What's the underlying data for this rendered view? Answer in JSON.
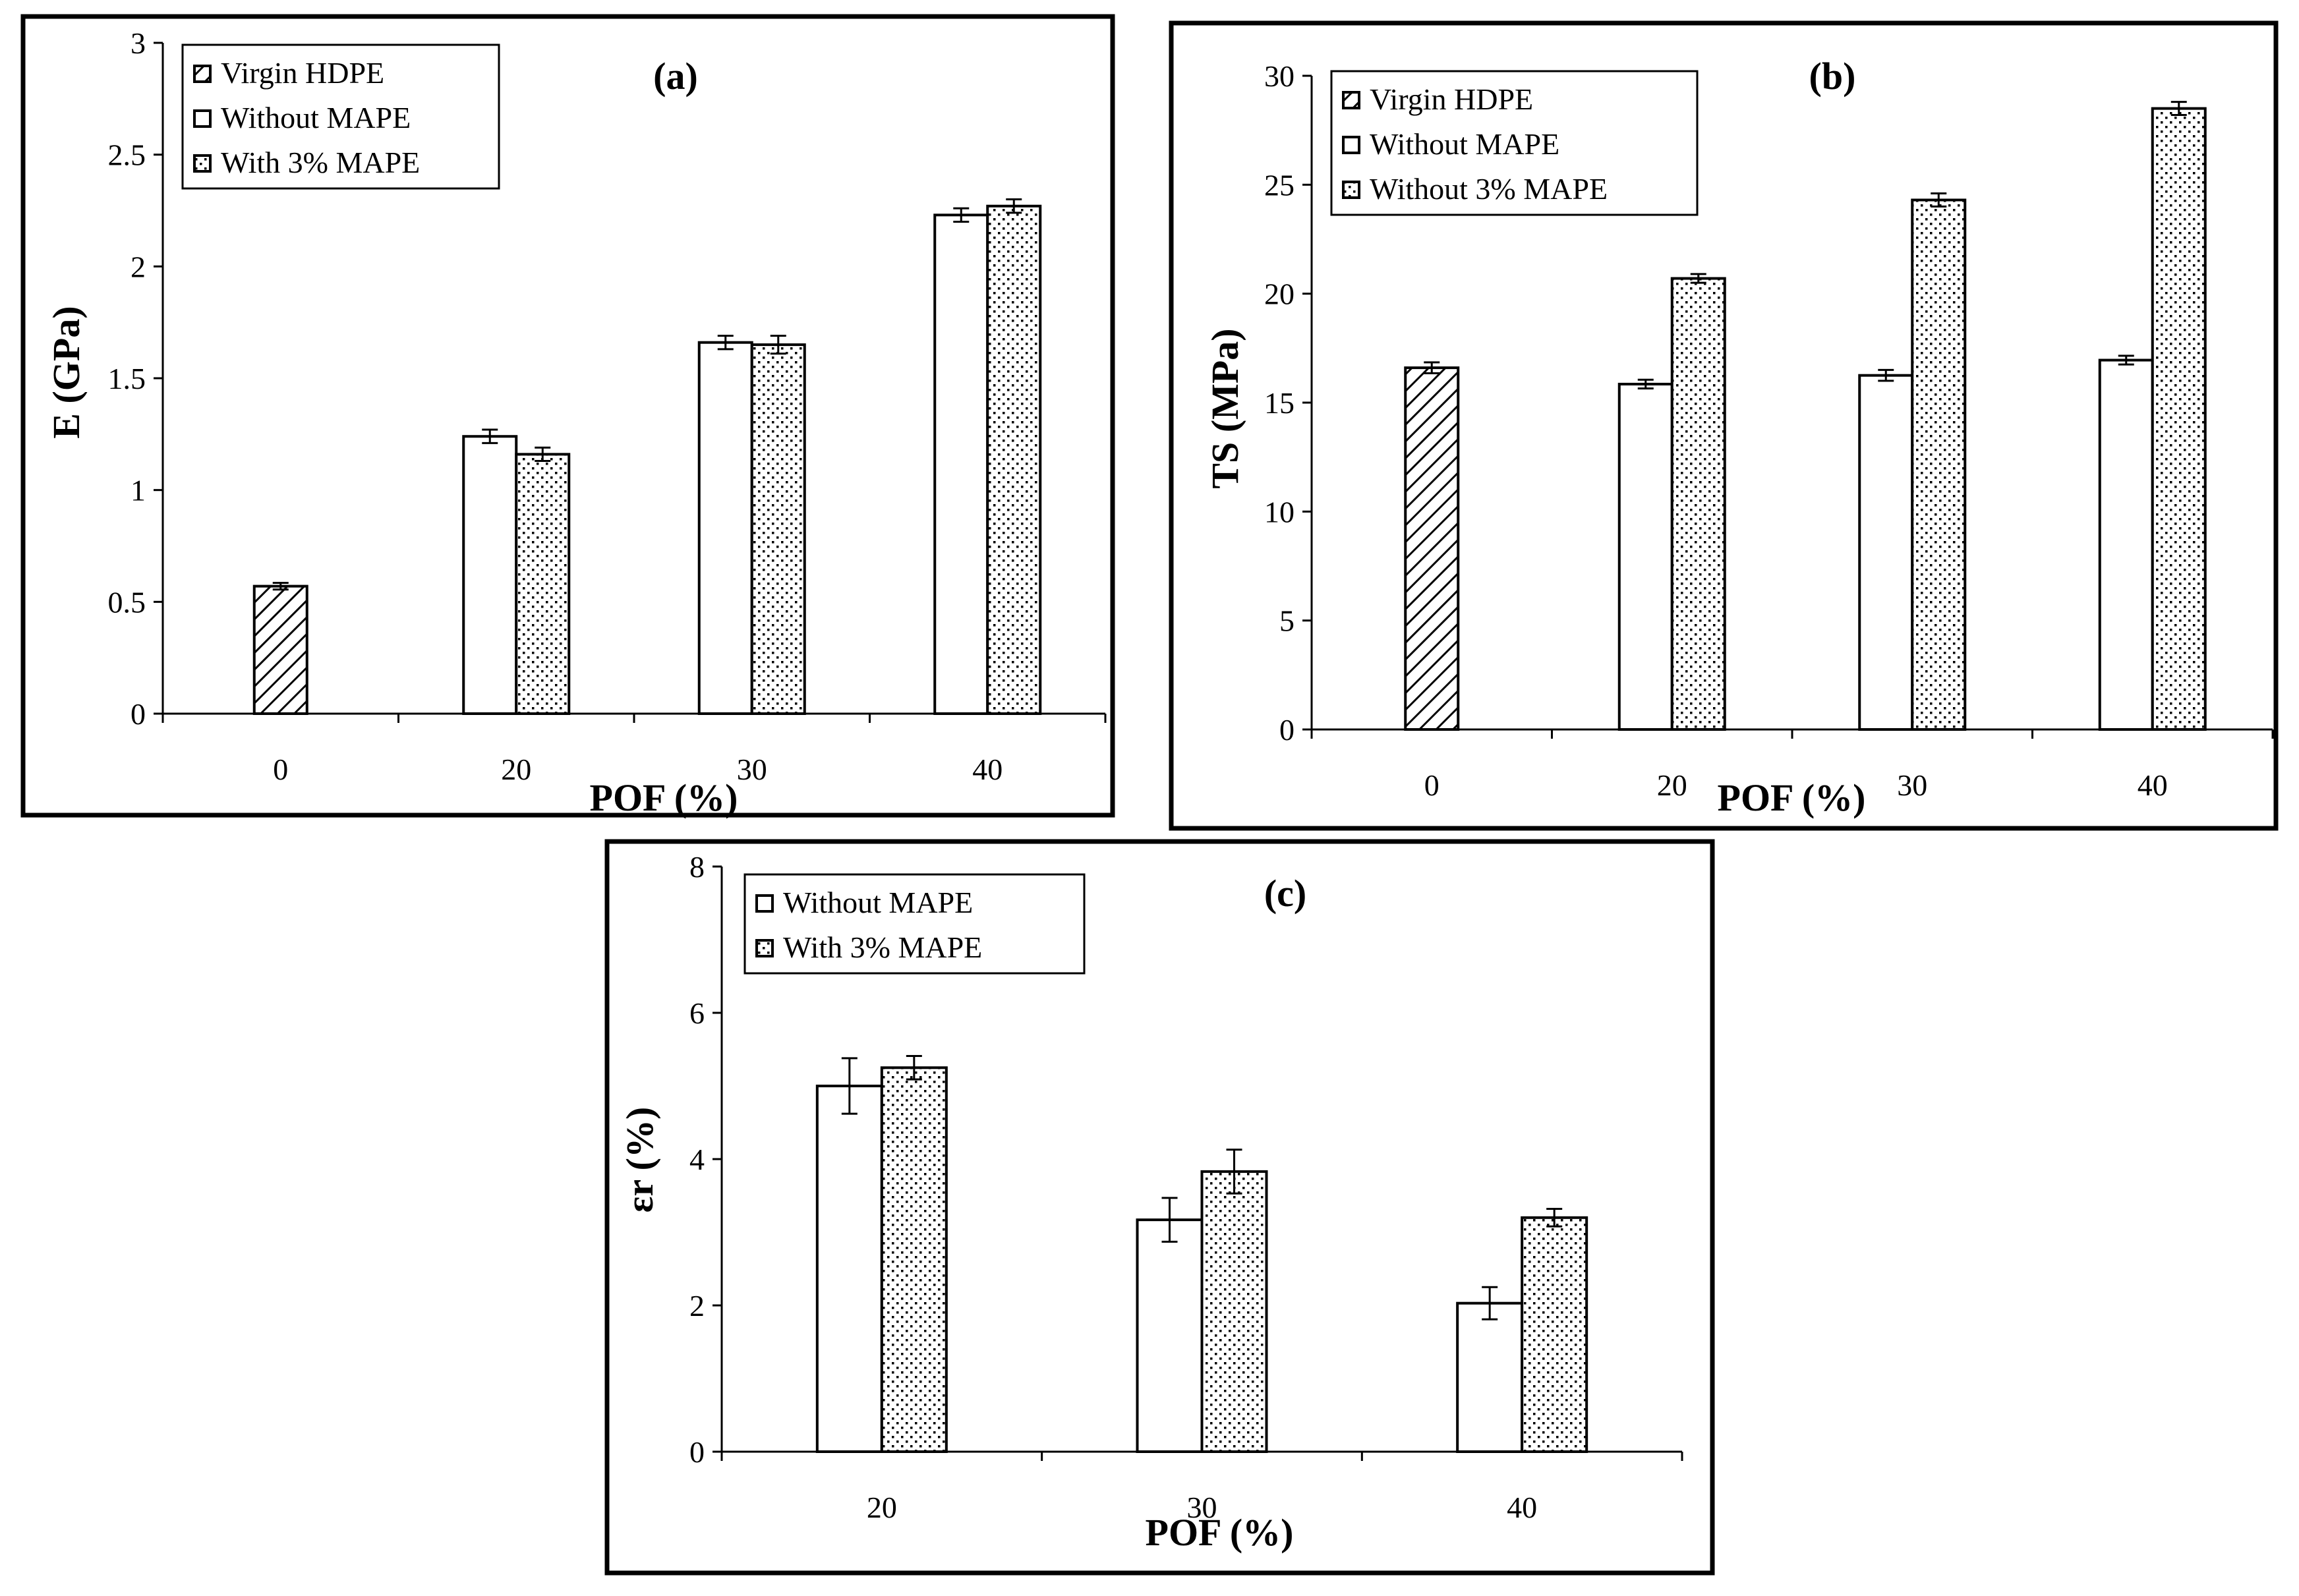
{
  "chart_data": [
    {
      "id": "a",
      "type": "bar",
      "title": "(a)",
      "xlabel": "POF (%)",
      "ylabel": "E (GPa)",
      "categories": [
        "0",
        "20",
        "30",
        "40"
      ],
      "ylim": [
        0,
        3
      ],
      "yticks": [
        "0",
        "0.5",
        "1",
        "1.5",
        "2",
        "2.5",
        "3"
      ],
      "ytick_values": [
        0,
        0.5,
        1,
        1.5,
        2,
        2.5,
        3
      ],
      "legend": [
        "Virgin HDPE",
        "Without MAPE",
        "With 3% MAPE"
      ],
      "series": [
        {
          "name": "Virgin HDPE",
          "pattern": "hatch",
          "values": [
            0.57,
            null,
            null,
            null
          ],
          "errors": [
            0.015,
            null,
            null,
            null
          ]
        },
        {
          "name": "Without MAPE",
          "pattern": "plain",
          "values": [
            null,
            1.24,
            1.66,
            2.23
          ],
          "errors": [
            null,
            0.03,
            0.03,
            0.03
          ]
        },
        {
          "name": "With 3% MAPE",
          "pattern": "dots",
          "values": [
            null,
            1.16,
            1.65,
            2.27
          ],
          "errors": [
            null,
            0.03,
            0.04,
            0.03
          ]
        }
      ]
    },
    {
      "id": "b",
      "type": "bar",
      "title": "(b)",
      "xlabel": "POF (%)",
      "ylabel": "TS (MPa)",
      "categories": [
        "0",
        "20",
        "30",
        "40"
      ],
      "ylim": [
        0,
        30
      ],
      "yticks": [
        "0",
        "5",
        "10",
        "15",
        "20",
        "25",
        "30"
      ],
      "ytick_values": [
        0,
        5,
        10,
        15,
        20,
        25,
        30
      ],
      "legend": [
        "Virgin HDPE",
        "Without MAPE",
        "Without 3% MAPE"
      ],
      "series": [
        {
          "name": "Virgin HDPE",
          "pattern": "hatch",
          "values": [
            16.6,
            null,
            null,
            null
          ],
          "errors": [
            0.25,
            null,
            null,
            null
          ]
        },
        {
          "name": "Without MAPE",
          "pattern": "plain",
          "values": [
            null,
            15.85,
            16.25,
            16.95
          ],
          "errors": [
            null,
            0.2,
            0.25,
            0.2
          ]
        },
        {
          "name": "Without 3% MAPE",
          "pattern": "dots",
          "values": [
            null,
            20.7,
            24.3,
            28.5
          ],
          "errors": [
            null,
            0.2,
            0.3,
            0.3
          ]
        }
      ]
    },
    {
      "id": "c",
      "type": "bar",
      "title": "(c)",
      "xlabel": "POF (%)",
      "ylabel": "εr (%)",
      "categories": [
        "20",
        "30",
        "40"
      ],
      "ylim": [
        0,
        8
      ],
      "yticks": [
        "0",
        "2",
        "4",
        "6",
        "8"
      ],
      "ytick_values": [
        0,
        2,
        4,
        6,
        8
      ],
      "legend": [
        "Without MAPE",
        "With 3% MAPE"
      ],
      "series": [
        {
          "name": "Without MAPE",
          "pattern": "plain",
          "values": [
            5.0,
            3.17,
            2.03
          ],
          "errors": [
            0.38,
            0.3,
            0.22
          ]
        },
        {
          "name": "With 3% MAPE",
          "pattern": "dots",
          "values": [
            5.25,
            3.83,
            3.2
          ],
          "errors": [
            0.16,
            0.3,
            0.12
          ]
        }
      ]
    }
  ]
}
